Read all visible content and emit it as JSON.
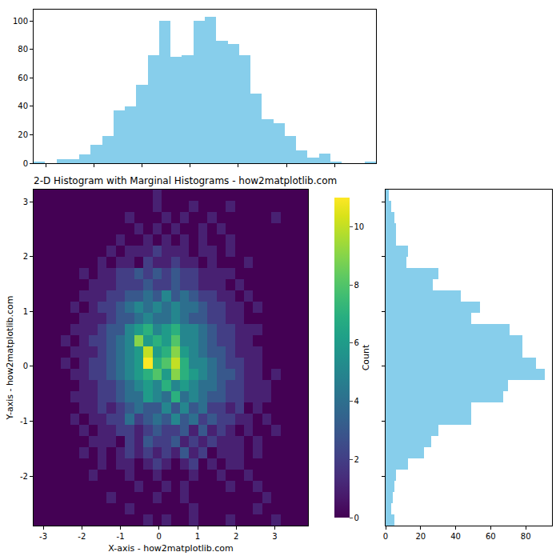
{
  "chart_data": [
    {
      "type": "heatmap",
      "title": "2-D Histogram with Marginal Histograms - how2matplotlib.com",
      "x_label": "X-axis - how2matplotlib.com",
      "y_label": "Y-axis - how2matplotlib.com",
      "color": "viridis",
      "xlim": [
        -3.25,
        3.86
      ],
      "ylim": [
        -2.9,
        3.22
      ],
      "xticks": [
        -3,
        -2,
        -1,
        0,
        1,
        2,
        3
      ],
      "yticks": [
        -2,
        -1,
        0,
        1,
        2,
        3
      ],
      "x_bins": [
        -3.25,
        -3.013,
        -2.776,
        -2.539,
        -2.302,
        -2.065,
        -1.828,
        -1.591,
        -1.354,
        -1.117,
        -0.88,
        -0.643,
        -0.406,
        -0.169,
        0.068,
        0.305,
        0.542,
        0.779,
        1.016,
        1.253,
        1.49,
        1.727,
        1.964,
        2.201,
        2.438,
        2.675,
        2.912,
        3.149,
        3.386,
        3.623,
        3.86
      ],
      "y_bins": [
        -2.9,
        -2.696,
        -2.492,
        -2.288,
        -2.084,
        -1.88,
        -1.676,
        -1.472,
        -1.268,
        -1.064,
        -0.86,
        -0.656,
        -0.452,
        -0.248,
        -0.044,
        0.16,
        0.364,
        0.568,
        0.772,
        0.976,
        1.18,
        1.384,
        1.588,
        1.792,
        1.996,
        2.2,
        2.404,
        2.608,
        2.812,
        3.016,
        3.22
      ],
      "cells": [
        [
          0,
          0,
          0,
          0,
          0,
          0,
          0,
          0,
          0,
          0,
          0,
          0,
          1,
          0,
          1,
          0,
          0,
          1,
          0,
          0,
          0,
          1,
          0,
          0,
          0,
          0,
          1,
          0,
          0,
          0
        ],
        [
          0,
          0,
          0,
          0,
          0,
          0,
          0,
          0,
          0,
          0,
          1,
          0,
          0,
          0,
          0,
          0,
          0,
          1,
          0,
          0,
          0,
          0,
          0,
          0,
          1,
          0,
          0,
          0,
          0,
          0
        ],
        [
          0,
          0,
          0,
          0,
          0,
          0,
          0,
          0,
          1,
          0,
          0,
          0,
          0,
          1,
          0,
          0,
          1,
          0,
          0,
          0,
          0,
          0,
          0,
          0,
          0,
          1,
          0,
          0,
          0,
          0
        ],
        [
          0,
          0,
          0,
          0,
          0,
          0,
          0,
          0,
          0,
          0,
          0,
          1,
          0,
          0,
          1,
          0,
          1,
          0,
          0,
          0,
          0,
          1,
          0,
          0,
          1,
          0,
          0,
          0,
          0,
          0
        ],
        [
          0,
          0,
          0,
          0,
          0,
          0,
          1,
          0,
          0,
          0,
          1,
          0,
          0,
          1,
          0,
          0,
          0,
          1,
          0,
          0,
          1,
          0,
          0,
          1,
          0,
          0,
          0,
          0,
          0,
          0
        ],
        [
          0,
          0,
          0,
          0,
          0,
          0,
          0,
          1,
          0,
          1,
          1,
          0,
          1,
          2,
          1,
          0,
          1,
          2,
          0,
          1,
          0,
          1,
          1,
          0,
          0,
          0,
          0,
          0,
          0,
          0
        ],
        [
          0,
          0,
          0,
          0,
          0,
          1,
          0,
          1,
          0,
          1,
          2,
          1,
          2,
          1,
          2,
          1,
          3,
          1,
          2,
          0,
          1,
          1,
          1,
          0,
          1,
          0,
          0,
          0,
          0,
          0
        ],
        [
          0,
          0,
          0,
          0,
          0,
          0,
          1,
          1,
          1,
          0,
          2,
          1,
          3,
          2,
          2,
          3,
          1,
          2,
          1,
          2,
          1,
          1,
          1,
          0,
          1,
          0,
          0,
          0,
          0,
          0
        ],
        [
          0,
          0,
          0,
          0,
          0,
          1,
          0,
          1,
          1,
          2,
          2,
          1,
          2,
          3,
          2,
          2,
          3,
          1,
          3,
          1,
          2,
          1,
          0,
          1,
          0,
          0,
          1,
          0,
          0,
          0
        ],
        [
          0,
          0,
          0,
          0,
          1,
          0,
          1,
          1,
          2,
          2,
          4,
          2,
          3,
          4,
          3,
          5,
          3,
          4,
          2,
          3,
          2,
          2,
          1,
          1,
          0,
          1,
          0,
          0,
          0,
          0
        ],
        [
          0,
          0,
          0,
          0,
          0,
          1,
          1,
          2,
          1,
          2,
          3,
          4,
          3,
          3,
          5,
          3,
          5,
          3,
          4,
          2,
          2,
          1,
          2,
          0,
          1,
          0,
          0,
          0,
          0,
          0
        ],
        [
          0,
          0,
          0,
          0,
          1,
          1,
          1,
          2,
          2,
          3,
          4,
          4,
          6,
          5,
          4,
          7,
          4,
          5,
          4,
          3,
          3,
          2,
          2,
          1,
          1,
          1,
          0,
          0,
          0,
          0
        ],
        [
          0,
          0,
          0,
          0,
          0,
          1,
          1,
          2,
          2,
          3,
          4,
          5,
          6,
          5,
          7,
          5,
          6,
          5,
          4,
          4,
          3,
          2,
          2,
          1,
          1,
          1,
          0,
          0,
          0,
          0
        ],
        [
          0,
          0,
          0,
          0,
          1,
          1,
          2,
          2,
          3,
          4,
          5,
          6,
          7,
          8,
          6,
          9,
          7,
          6,
          5,
          4,
          3,
          3,
          2,
          1,
          1,
          0,
          1,
          0,
          0,
          0
        ],
        [
          0,
          0,
          0,
          1,
          0,
          1,
          2,
          2,
          3,
          4,
          5,
          6,
          11,
          7,
          8,
          10,
          7,
          5,
          5,
          4,
          3,
          2,
          2,
          1,
          1,
          0,
          0,
          0,
          0,
          0
        ],
        [
          0,
          0,
          0,
          0,
          1,
          1,
          1,
          2,
          3,
          4,
          5,
          6,
          10,
          6,
          7,
          9,
          6,
          5,
          4,
          3,
          3,
          2,
          1,
          1,
          1,
          0,
          0,
          0,
          0,
          0
        ],
        [
          0,
          0,
          0,
          1,
          0,
          1,
          2,
          2,
          3,
          4,
          5,
          9,
          6,
          7,
          6,
          8,
          5,
          5,
          4,
          3,
          2,
          2,
          1,
          1,
          0,
          0,
          0,
          0,
          0,
          0
        ],
        [
          0,
          0,
          0,
          0,
          1,
          1,
          1,
          2,
          3,
          3,
          5,
          6,
          7,
          5,
          6,
          7,
          5,
          5,
          4,
          3,
          2,
          2,
          1,
          1,
          1,
          0,
          0,
          0,
          0,
          0
        ],
        [
          0,
          0,
          0,
          0,
          0,
          1,
          1,
          1,
          2,
          3,
          3,
          4,
          5,
          4,
          4,
          5,
          4,
          3,
          3,
          2,
          2,
          1,
          1,
          0,
          0,
          0,
          0,
          0,
          0,
          0
        ],
        [
          0,
          0,
          0,
          0,
          1,
          0,
          1,
          2,
          2,
          3,
          4,
          5,
          4,
          5,
          4,
          5,
          4,
          4,
          3,
          2,
          2,
          1,
          1,
          0,
          1,
          0,
          0,
          0,
          0,
          0
        ],
        [
          0,
          0,
          0,
          0,
          0,
          1,
          1,
          1,
          2,
          2,
          3,
          3,
          4,
          3,
          5,
          3,
          4,
          3,
          2,
          2,
          1,
          1,
          0,
          1,
          0,
          0,
          0,
          0,
          0,
          0
        ],
        [
          0,
          0,
          0,
          0,
          0,
          0,
          1,
          1,
          1,
          2,
          2,
          2,
          3,
          2,
          2,
          3,
          2,
          2,
          1,
          1,
          1,
          0,
          1,
          0,
          0,
          0,
          0,
          0,
          0,
          0
        ],
        [
          0,
          0,
          0,
          0,
          0,
          1,
          0,
          1,
          1,
          2,
          2,
          3,
          2,
          3,
          2,
          3,
          2,
          2,
          1,
          1,
          1,
          1,
          0,
          0,
          0,
          0,
          0,
          0,
          0,
          0
        ],
        [
          0,
          0,
          0,
          0,
          0,
          0,
          0,
          1,
          0,
          1,
          1,
          0,
          2,
          1,
          1,
          2,
          1,
          1,
          0,
          1,
          0,
          0,
          0,
          1,
          0,
          0,
          0,
          0,
          0,
          0
        ],
        [
          0,
          0,
          0,
          0,
          0,
          0,
          0,
          0,
          1,
          0,
          1,
          1,
          1,
          2,
          1,
          1,
          1,
          0,
          1,
          1,
          0,
          1,
          0,
          0,
          0,
          0,
          0,
          0,
          0,
          0
        ],
        [
          0,
          0,
          0,
          0,
          0,
          0,
          0,
          0,
          0,
          1,
          0,
          0,
          1,
          0,
          1,
          0,
          1,
          0,
          1,
          0,
          0,
          1,
          0,
          0,
          0,
          0,
          0,
          0,
          0,
          0
        ],
        [
          0,
          0,
          0,
          0,
          0,
          0,
          0,
          0,
          0,
          0,
          0,
          1,
          0,
          1,
          0,
          1,
          0,
          0,
          1,
          0,
          1,
          0,
          0,
          0,
          0,
          0,
          0,
          0,
          0,
          0
        ],
        [
          0,
          0,
          0,
          0,
          0,
          0,
          0,
          0,
          0,
          0,
          1,
          0,
          0,
          0,
          1,
          0,
          1,
          0,
          0,
          1,
          0,
          0,
          0,
          0,
          0,
          0,
          1,
          0,
          0,
          0
        ],
        [
          0,
          0,
          0,
          0,
          0,
          0,
          0,
          0,
          0,
          0,
          0,
          0,
          0,
          1,
          0,
          0,
          0,
          1,
          0,
          0,
          0,
          1,
          0,
          0,
          0,
          0,
          0,
          0,
          0,
          0
        ],
        [
          0,
          0,
          0,
          0,
          0,
          0,
          0,
          0,
          0,
          0,
          0,
          0,
          0,
          1,
          0,
          0,
          0,
          0,
          0,
          0,
          0,
          0,
          0,
          0,
          0,
          0,
          0,
          0,
          0,
          0
        ]
      ],
      "colorbar": {
        "title": "Count",
        "range": [
          0,
          11
        ],
        "ticks": [
          0,
          2,
          4,
          6,
          8,
          10
        ]
      }
    },
    {
      "type": "histogram",
      "color": "#87ceeb",
      "bins": [
        -3.25,
        -3.013,
        -2.776,
        -2.539,
        -2.302,
        -2.065,
        -1.828,
        -1.591,
        -1.354,
        -1.117,
        -0.88,
        -0.643,
        -0.406,
        -0.169,
        0.068,
        0.305,
        0.542,
        0.779,
        1.016,
        1.253,
        1.49,
        1.727,
        1.964,
        2.201,
        2.438,
        2.675,
        2.912,
        3.149,
        3.386,
        3.623,
        3.86
      ],
      "values": [
        1,
        0,
        3,
        3,
        6,
        13,
        19,
        37,
        40,
        55,
        76,
        100,
        75,
        76,
        100,
        103,
        86,
        84,
        76,
        49,
        31,
        28,
        19,
        9,
        4,
        7,
        1,
        0,
        0,
        1
      ],
      "xlim": [
        -3.25,
        3.86
      ],
      "ylim": [
        0,
        108
      ],
      "xticks": [
        -3,
        -2,
        -1,
        0,
        1,
        2,
        3
      ],
      "yticks": [
        0,
        20,
        40,
        60,
        80,
        100
      ],
      "tick_labels": "y"
    },
    {
      "type": "histogram",
      "orientation": "horizontal",
      "color": "#87ceeb",
      "bins": [
        -2.9,
        -2.696,
        -2.492,
        -2.288,
        -2.084,
        -1.88,
        -1.676,
        -1.472,
        -1.268,
        -1.064,
        -0.86,
        -0.656,
        -0.452,
        -0.248,
        -0.044,
        0.16,
        0.364,
        0.568,
        0.772,
        0.976,
        1.18,
        1.384,
        1.588,
        1.792,
        1.996,
        2.2,
        2.404,
        2.608,
        2.812,
        3.016,
        3.22
      ],
      "values": [
        5,
        3,
        4,
        5,
        6,
        13,
        22,
        26,
        30,
        49,
        49,
        67,
        70,
        91,
        86,
        78,
        78,
        71,
        49,
        54,
        43,
        27,
        30,
        12,
        13,
        6,
        6,
        5,
        3,
        2
      ],
      "xlim": [
        0,
        95
      ],
      "ylim": [
        -2.9,
        3.22
      ],
      "xticks": [
        0,
        20,
        40,
        60,
        80
      ],
      "yticks": [
        -2,
        -1,
        0,
        1,
        2,
        3
      ],
      "tick_labels": "x"
    }
  ]
}
